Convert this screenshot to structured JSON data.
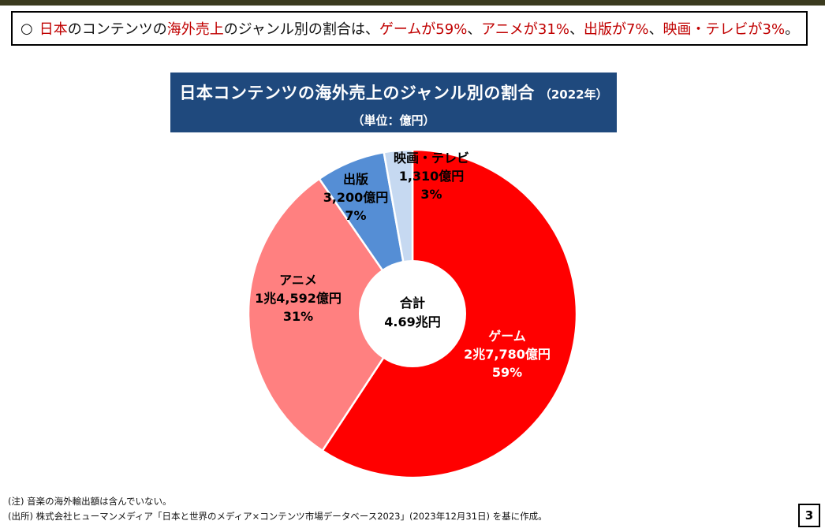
{
  "headline": {
    "circle": "○",
    "parts": [
      {
        "text": "日本",
        "red": true
      },
      {
        "text": "のコンテンツの",
        "red": false
      },
      {
        "text": "海外売上",
        "red": true
      },
      {
        "text": "のジャンル別の割合は、",
        "red": false
      },
      {
        "text": "ゲームが59%",
        "red": true
      },
      {
        "text": "、",
        "red": false
      },
      {
        "text": "アニメが31%",
        "red": true
      },
      {
        "text": "、",
        "red": false
      },
      {
        "text": "出版が7%",
        "red": true
      },
      {
        "text": "、",
        "red": false
      },
      {
        "text": "映画・テレビが3%",
        "red": true
      },
      {
        "text": "。",
        "red": false
      }
    ]
  },
  "chart_data": {
    "type": "pie",
    "title": "日本コンテンツの海外売上のジャンル別の割合",
    "title_year": "（2022年）",
    "subtitle": "（単位：億円）",
    "center_label": [
      "合計",
      "4.69兆円"
    ],
    "slices": [
      {
        "name": "ゲーム",
        "value_label": "2兆7,780億円",
        "percent_label": "59%",
        "value": 27780,
        "color": "#ff0000",
        "label_color": "#ffffff"
      },
      {
        "name": "アニメ",
        "value_label": "1兆4,592億円",
        "percent_label": "31%",
        "value": 14592,
        "color": "#ff8080",
        "label_color": "#000000"
      },
      {
        "name": "出版",
        "value_label": "3,200億円",
        "percent_label": "7%",
        "value": 3200,
        "color": "#558ed5",
        "label_color": "#000000"
      },
      {
        "name": "映画・テレビ",
        "value_label": "1,310億円",
        "percent_label": "3%",
        "value": 1310,
        "color": "#c6d9f1",
        "label_color": "#000000"
      }
    ]
  },
  "notes": [
    "(注) 音楽の海外輸出額は含んでいない。",
    "(出所) 株式会社ヒューマンメディア「日本と世界のメディア×コンテンツ市場データベース2023」(2023年12月31日) を基に作成。"
  ],
  "page_number": "3"
}
